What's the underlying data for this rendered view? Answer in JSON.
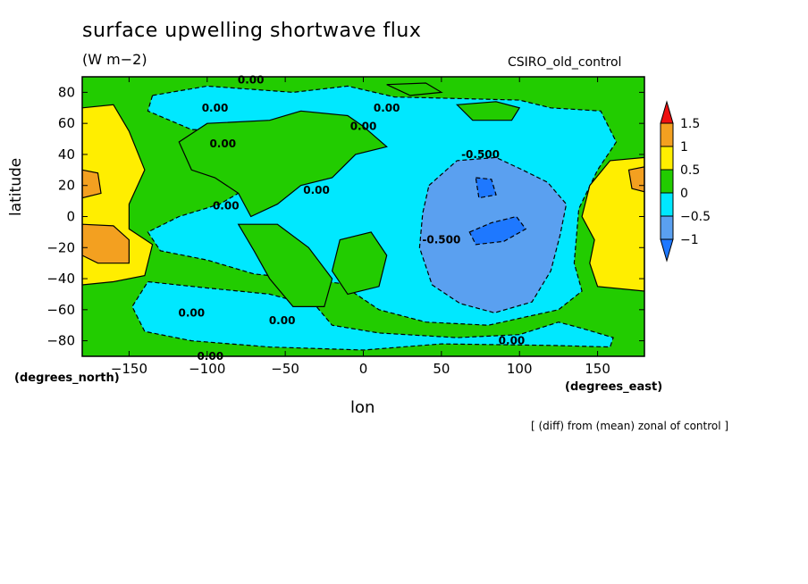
{
  "chart_data": {
    "type": "heatmap",
    "title": "surface upwelling shortwave flux",
    "units": "(W m−2)",
    "model": "CSIRO_old_control",
    "ylabel": "latitude",
    "ylabel_units": "(degrees_north)",
    "xlabel": "lon",
    "xlabel_units": "(degrees_east)",
    "note": "[ (diff) from (mean) zonal of control ]",
    "xlim": [
      -180,
      180
    ],
    "ylim": [
      -90,
      90
    ],
    "x_ticks": [
      -150,
      -100,
      -50,
      0,
      50,
      100,
      150
    ],
    "x_tick_labels": [
      "−150",
      "−100",
      "−50",
      "0",
      "50",
      "100",
      "150"
    ],
    "y_ticks": [
      80,
      60,
      40,
      20,
      0,
      -20,
      -40,
      -60,
      -80
    ],
    "y_tick_labels": [
      "80",
      "60",
      "40",
      "20",
      "0",
      "−20",
      "−40",
      "−60",
      "−80"
    ],
    "colorbar": {
      "levels": [
        -1,
        -0.5,
        0,
        0.5,
        1,
        1.5
      ],
      "level_labels": [
        "−1",
        "−0.5",
        "0",
        "0.5",
        "1",
        "1.5"
      ],
      "bins": [
        {
          "range": [
            -2,
            -1
          ],
          "color": "#1e78ff"
        },
        {
          "range": [
            -1,
            -0.5
          ],
          "color": "#5aa0f0"
        },
        {
          "range": [
            -0.5,
            0
          ],
          "color": "#00e8ff"
        },
        {
          "range": [
            0,
            0.5
          ],
          "color": "#22cc00"
        },
        {
          "range": [
            0.5,
            1
          ],
          "color": "#ffee00"
        },
        {
          "range": [
            1,
            1.5
          ],
          "color": "#f3a020"
        },
        {
          "range": [
            1.5,
            2
          ],
          "color": "#ee1010"
        }
      ]
    },
    "contour_labels": [
      {
        "text": "0.00",
        "lon": -72,
        "lat": 88
      },
      {
        "text": "0.00",
        "lon": -95,
        "lat": 70
      },
      {
        "text": "0.00",
        "lon": -90,
        "lat": 47
      },
      {
        "text": "0.00",
        "lon": 15,
        "lat": 70
      },
      {
        "text": "0.00",
        "lon": 0,
        "lat": 58
      },
      {
        "text": "0.00",
        "lon": -30,
        "lat": 17
      },
      {
        "text": "0.00",
        "lon": -88,
        "lat": 7
      },
      {
        "text": "0.00",
        "lon": -110,
        "lat": -62
      },
      {
        "text": "0.00",
        "lon": -52,
        "lat": -67
      },
      {
        "text": "0.00",
        "lon": 95,
        "lat": -80
      },
      {
        "text": "0.00",
        "lon": -98,
        "lat": -90
      },
      {
        "text": "-0.500",
        "lon": 75,
        "lat": 40
      },
      {
        "text": "-0.500",
        "lon": 50,
        "lat": -15
      }
    ],
    "regions": [
      {
        "value": 0.25,
        "color": "#22cc00",
        "polygon": [
          [
            -180,
            90
          ],
          [
            180,
            90
          ],
          [
            180,
            -90
          ],
          [
            -180,
            -90
          ]
        ]
      },
      {
        "value": -0.25,
        "color": "#00e8ff",
        "polygon": [
          [
            -135,
            78
          ],
          [
            -100,
            84
          ],
          [
            -45,
            80
          ],
          [
            -10,
            84
          ],
          [
            20,
            77
          ],
          [
            60,
            76
          ],
          [
            100,
            75
          ],
          [
            120,
            70
          ],
          [
            152,
            68
          ],
          [
            162,
            48
          ],
          [
            150,
            30
          ],
          [
            138,
            5
          ],
          [
            135,
            -30
          ],
          [
            140,
            -48
          ],
          [
            125,
            -60
          ],
          [
            80,
            -70
          ],
          [
            40,
            -68
          ],
          [
            10,
            -60
          ],
          [
            -15,
            -43
          ],
          [
            -40,
            -40
          ],
          [
            -70,
            -37
          ],
          [
            -100,
            -28
          ],
          [
            -130,
            -22
          ],
          [
            -138,
            -10
          ],
          [
            -118,
            0
          ],
          [
            -92,
            8
          ],
          [
            -75,
            18
          ],
          [
            -62,
            40
          ],
          [
            -70,
            55
          ],
          [
            -110,
            56
          ],
          [
            -138,
            68
          ]
        ]
      },
      {
        "value": -0.25,
        "color": "#00e8ff",
        "polygon": [
          [
            -138,
            -42
          ],
          [
            -100,
            -46
          ],
          [
            -60,
            -50
          ],
          [
            -30,
            -58
          ],
          [
            -20,
            -70
          ],
          [
            10,
            -75
          ],
          [
            60,
            -78
          ],
          [
            100,
            -76
          ],
          [
            125,
            -68
          ],
          [
            140,
            -72
          ],
          [
            160,
            -78
          ],
          [
            158,
            -84
          ],
          [
            120,
            -83
          ],
          [
            50,
            -82
          ],
          [
            0,
            -86
          ],
          [
            -60,
            -84
          ],
          [
            -110,
            -80
          ],
          [
            -140,
            -74
          ],
          [
            -148,
            -58
          ]
        ]
      },
      {
        "value": 0.25,
        "color": "#22cc00",
        "polygon": [
          [
            -100,
            60
          ],
          [
            -60,
            62
          ],
          [
            -40,
            68
          ],
          [
            -10,
            65
          ],
          [
            0,
            58
          ],
          [
            15,
            45
          ],
          [
            -5,
            40
          ],
          [
            -20,
            25
          ],
          [
            -40,
            20
          ],
          [
            -55,
            8
          ],
          [
            -72,
            0
          ],
          [
            -80,
            15
          ],
          [
            -95,
            25
          ],
          [
            -110,
            30
          ],
          [
            -118,
            48
          ]
        ]
      },
      {
        "value": 0.25,
        "color": "#22cc00",
        "polygon": [
          [
            -80,
            -5
          ],
          [
            -55,
            -5
          ],
          [
            -35,
            -20
          ],
          [
            -20,
            -40
          ],
          [
            -25,
            -58
          ],
          [
            -45,
            -58
          ],
          [
            -60,
            -40
          ],
          [
            -70,
            -22
          ]
        ]
      },
      {
        "value": 0.25,
        "color": "#22cc00",
        "polygon": [
          [
            -15,
            -15
          ],
          [
            5,
            -10
          ],
          [
            15,
            -25
          ],
          [
            10,
            -45
          ],
          [
            -10,
            -50
          ],
          [
            -20,
            -35
          ]
        ]
      },
      {
        "value": 0.25,
        "color": "#22cc00",
        "polygon": [
          [
            60,
            72
          ],
          [
            85,
            74
          ],
          [
            100,
            70
          ],
          [
            95,
            62
          ],
          [
            70,
            62
          ]
        ]
      },
      {
        "value": 0.25,
        "color": "#22cc00",
        "polygon": [
          [
            15,
            85
          ],
          [
            40,
            86
          ],
          [
            50,
            80
          ],
          [
            30,
            78
          ]
        ]
      },
      {
        "value": -0.75,
        "color": "#5aa0f0",
        "polygon": [
          [
            42,
            20
          ],
          [
            60,
            36
          ],
          [
            85,
            38
          ],
          [
            102,
            30
          ],
          [
            118,
            22
          ],
          [
            130,
            8
          ],
          [
            126,
            -12
          ],
          [
            120,
            -35
          ],
          [
            108,
            -55
          ],
          [
            84,
            -62
          ],
          [
            62,
            -56
          ],
          [
            44,
            -44
          ],
          [
            36,
            -20
          ],
          [
            38,
            2
          ]
        ]
      },
      {
        "value": -1.25,
        "color": "#1e78ff",
        "polygon": [
          [
            72,
            25
          ],
          [
            82,
            24
          ],
          [
            85,
            14
          ],
          [
            74,
            12
          ]
        ]
      },
      {
        "value": -1.25,
        "color": "#1e78ff",
        "polygon": [
          [
            68,
            -10
          ],
          [
            82,
            -4
          ],
          [
            98,
            0
          ],
          [
            104,
            -8
          ],
          [
            90,
            -16
          ],
          [
            72,
            -18
          ]
        ]
      },
      {
        "value": 0.75,
        "color": "#ffee00",
        "polygon": [
          [
            -180,
            70
          ],
          [
            -160,
            72
          ],
          [
            -150,
            55
          ],
          [
            -140,
            30
          ],
          [
            -150,
            8
          ],
          [
            -150,
            -8
          ],
          [
            -135,
            -18
          ],
          [
            -140,
            -38
          ],
          [
            -160,
            -42
          ],
          [
            -180,
            -44
          ]
        ]
      },
      {
        "value": 1.25,
        "color": "#f3a020",
        "polygon": [
          [
            -180,
            30
          ],
          [
            -170,
            28
          ],
          [
            -168,
            15
          ],
          [
            -180,
            12
          ]
        ]
      },
      {
        "value": 1.25,
        "color": "#f3a020",
        "polygon": [
          [
            -180,
            -5
          ],
          [
            -160,
            -6
          ],
          [
            -150,
            -15
          ],
          [
            -150,
            -30
          ],
          [
            -170,
            -30
          ],
          [
            -180,
            -25
          ]
        ]
      },
      {
        "value": 0.75,
        "color": "#ffee00",
        "polygon": [
          [
            180,
            38
          ],
          [
            158,
            36
          ],
          [
            145,
            20
          ],
          [
            140,
            0
          ],
          [
            148,
            -15
          ],
          [
            145,
            -30
          ],
          [
            150,
            -45
          ],
          [
            180,
            -48
          ]
        ]
      },
      {
        "value": 1.25,
        "color": "#f3a020",
        "polygon": [
          [
            180,
            32
          ],
          [
            170,
            30
          ],
          [
            172,
            18
          ],
          [
            180,
            16
          ]
        ]
      }
    ]
  }
}
